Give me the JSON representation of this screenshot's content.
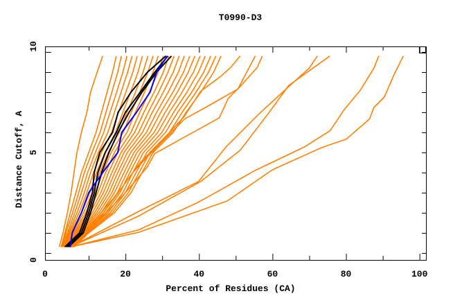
{
  "chart_data": {
    "type": "line",
    "title": "T0990-D3",
    "xlabel": "Percent of Residues (CA)",
    "ylabel": "Distance Cutoff, A",
    "xlim": [
      0,
      100
    ],
    "ylim": [
      0,
      10
    ],
    "xticks": [
      0,
      20,
      40,
      60,
      80,
      100
    ],
    "yticks": [
      0,
      5,
      10
    ],
    "grid": false,
    "legend": "none",
    "colors": {
      "models": "#ff8000",
      "highlight": "#000000",
      "reference": "#0000ff"
    },
    "y_levels": [
      0.3,
      1,
      2,
      3,
      4,
      5,
      6,
      7,
      8,
      9,
      9.8
    ],
    "series": [
      {
        "group": "models",
        "x": [
          2.0,
          3.0,
          4.2,
          5.2,
          6.0,
          6.8,
          8.0,
          9.5,
          10.5,
          12.3,
          13.8
        ]
      },
      {
        "group": "models",
        "x": [
          2.5,
          3.5,
          5.0,
          6.5,
          8.0,
          10.0,
          12.0,
          13.5,
          15.0,
          16.5,
          17.5
        ]
      },
      {
        "group": "models",
        "x": [
          2.7,
          3.8,
          5.6,
          7.3,
          8.8,
          10.9,
          13.1,
          14.7,
          16.3,
          17.9,
          18.9
        ]
      },
      {
        "group": "models",
        "x": [
          2.9,
          4.2,
          6.2,
          8.0,
          9.7,
          11.8,
          14.1,
          15.8,
          17.6,
          19.3,
          20.4
        ]
      },
      {
        "group": "models",
        "x": [
          3.0,
          4.5,
          6.8,
          8.8,
          10.5,
          12.6,
          15.2,
          17.0,
          18.8,
          20.6,
          21.8
        ]
      },
      {
        "group": "models",
        "x": [
          3.2,
          4.8,
          7.4,
          9.5,
          11.3,
          13.5,
          16.2,
          18.1,
          20.1,
          22.0,
          23.2
        ]
      },
      {
        "group": "models",
        "x": [
          3.4,
          5.1,
          8.0,
          10.3,
          12.1,
          14.4,
          17.3,
          19.3,
          21.4,
          23.4,
          24.6
        ]
      },
      {
        "group": "models",
        "x": [
          3.6,
          5.5,
          8.6,
          11.0,
          13.0,
          15.3,
          18.3,
          20.4,
          22.7,
          24.8,
          26.1
        ]
      },
      {
        "group": "models",
        "x": [
          3.7,
          5.8,
          9.2,
          11.8,
          13.8,
          16.1,
          19.4,
          21.6,
          23.9,
          26.1,
          27.5
        ]
      },
      {
        "group": "models",
        "x": [
          3.9,
          6.1,
          9.8,
          12.5,
          14.6,
          17.0,
          20.4,
          22.7,
          25.2,
          27.5,
          28.9
        ]
      },
      {
        "group": "models",
        "x": [
          4.1,
          6.4,
          10.4,
          13.3,
          15.4,
          17.9,
          21.5,
          23.9,
          26.5,
          28.9,
          30.3
        ]
      },
      {
        "group": "models",
        "x": [
          4.3,
          6.8,
          11.0,
          14.0,
          16.3,
          18.8,
          22.5,
          25.0,
          27.8,
          30.3,
          31.8
        ]
      },
      {
        "group": "models",
        "x": [
          4.4,
          7.1,
          11.6,
          14.8,
          17.1,
          19.6,
          23.6,
          26.2,
          29.0,
          31.6,
          33.2
        ]
      },
      {
        "group": "models",
        "x": [
          4.6,
          7.4,
          12.2,
          15.5,
          17.9,
          20.5,
          24.6,
          27.3,
          30.3,
          33.0,
          34.6
        ]
      },
      {
        "group": "models",
        "x": [
          4.8,
          7.7,
          12.8,
          16.3,
          18.7,
          21.4,
          25.7,
          28.5,
          31.6,
          34.4,
          36.0
        ]
      },
      {
        "group": "models",
        "x": [
          5.0,
          8.1,
          13.4,
          17.0,
          19.6,
          22.3,
          26.7,
          29.6,
          32.9,
          35.8,
          37.5
        ]
      },
      {
        "group": "models",
        "x": [
          5.1,
          8.4,
          14.0,
          17.8,
          20.4,
          23.1,
          27.8,
          30.8,
          34.1,
          37.1,
          38.9
        ]
      },
      {
        "group": "models",
        "x": [
          5.3,
          8.7,
          14.6,
          18.5,
          21.2,
          24.0,
          28.8,
          31.9,
          35.4,
          38.5,
          40.3
        ]
      },
      {
        "group": "models",
        "x": [
          5.5,
          9.0,
          15.2,
          19.3,
          22.0,
          24.9,
          29.9,
          33.1,
          36.7,
          39.9,
          41.7
        ]
      },
      {
        "group": "models",
        "x": [
          5.7,
          9.4,
          15.8,
          20.0,
          22.9,
          25.8,
          30.9,
          34.2,
          38.0,
          41.3,
          43.2
        ]
      },
      {
        "group": "models",
        "x": [
          5.8,
          9.7,
          16.4,
          20.8,
          23.7,
          26.6,
          32.0,
          35.4,
          39.2,
          42.6,
          44.6
        ]
      },
      {
        "group": "models",
        "x": [
          6.0,
          10.0,
          17.0,
          21.5,
          24.5,
          27.5,
          33.0,
          36.5,
          40.5,
          44.0,
          46.0
        ]
      },
      {
        "group": "models",
        "x": [
          5.0,
          12.0,
          18.0,
          22.0,
          25.0,
          28.6,
          36.1,
          41.8,
          50.6,
          55.3
        ],
        "y": [
          0.3,
          1.5,
          3.0,
          4.0,
          4.6,
          5.29,
          6.67,
          7.24,
          8.16,
          9.8
        ]
      },
      {
        "group": "models",
        "x": [
          5.0,
          12.0,
          20.0,
          26.0,
          27.9,
          45.5,
          48.0,
          51.2,
          55.9,
          57.2
        ],
        "y": [
          0.3,
          1.5,
          3.0,
          4.3,
          4.94,
          6.72,
          7.7,
          8.28,
          9.25,
          9.8
        ]
      },
      {
        "group": "models",
        "x": [
          5.0,
          11.0,
          18.0,
          24.0,
          30.0,
          36.0,
          40.5,
          46.0,
          48.7,
          51.2
        ],
        "y": [
          0.3,
          1.5,
          3.0,
          4.5,
          5.6,
          6.8,
          8.05,
          8.8,
          9.25,
          9.8
        ]
      },
      {
        "group": "models",
        "x": [
          5.0,
          23.6,
          39.9,
          47.4,
          56.2,
          63.7,
          70.0,
          72.2
        ],
        "y": [
          0.3,
          2.07,
          3.56,
          5.29,
          6.9,
          8.16,
          9.2,
          9.8
        ]
      },
      {
        "group": "models",
        "x": [
          5.0,
          23.6,
          40.5,
          51.2,
          58.7,
          64.4,
          75.6
        ],
        "y": [
          0.3,
          1.84,
          3.56,
          5.11,
          6.9,
          8.33,
          9.8
        ]
      },
      {
        "group": "models",
        "x": [
          5.0,
          23.6,
          39.9,
          55.0,
          68.8,
          75.7,
          79.5,
          83.9,
          87.6,
          88.9
        ],
        "y": [
          0.3,
          1.15,
          2.53,
          4.08,
          5.29,
          6.09,
          7.13,
          8.1,
          9.2,
          9.8
        ]
      },
      {
        "group": "models",
        "x": [
          5.0,
          23.6,
          47.7,
          60.0,
          73.2,
          80.1,
          86.4,
          87.6,
          90.4,
          93.0,
          95.6
        ],
        "y": [
          0.3,
          1.03,
          2.59,
          4.14,
          5.23,
          5.67,
          6.67,
          7.24,
          7.76,
          8.85,
          9.8
        ]
      },
      {
        "group": "highlight",
        "x": [
          3.5,
          7.5,
          9.5,
          11.0,
          11.5,
          13.0,
          16.5,
          18.0,
          21.5,
          26.0,
          31.0
        ]
      },
      {
        "group": "highlight",
        "x": [
          4.0,
          8.0,
          10.0,
          11.5,
          12.5,
          14.5,
          17.5,
          20.0,
          24.0,
          28.0,
          31.5
        ]
      },
      {
        "group": "highlight",
        "x": [
          4.5,
          8.5,
          10.5,
          12.0,
          13.5,
          15.5,
          18.0,
          21.0,
          24.5,
          28.5,
          32.5
        ]
      },
      {
        "group": "reference",
        "x": [
          5.0,
          5.5,
          8.0,
          10.0,
          13.8,
          17.9,
          19.0,
          23.0,
          26.7,
          28.5,
          31.4
        ]
      }
    ]
  }
}
